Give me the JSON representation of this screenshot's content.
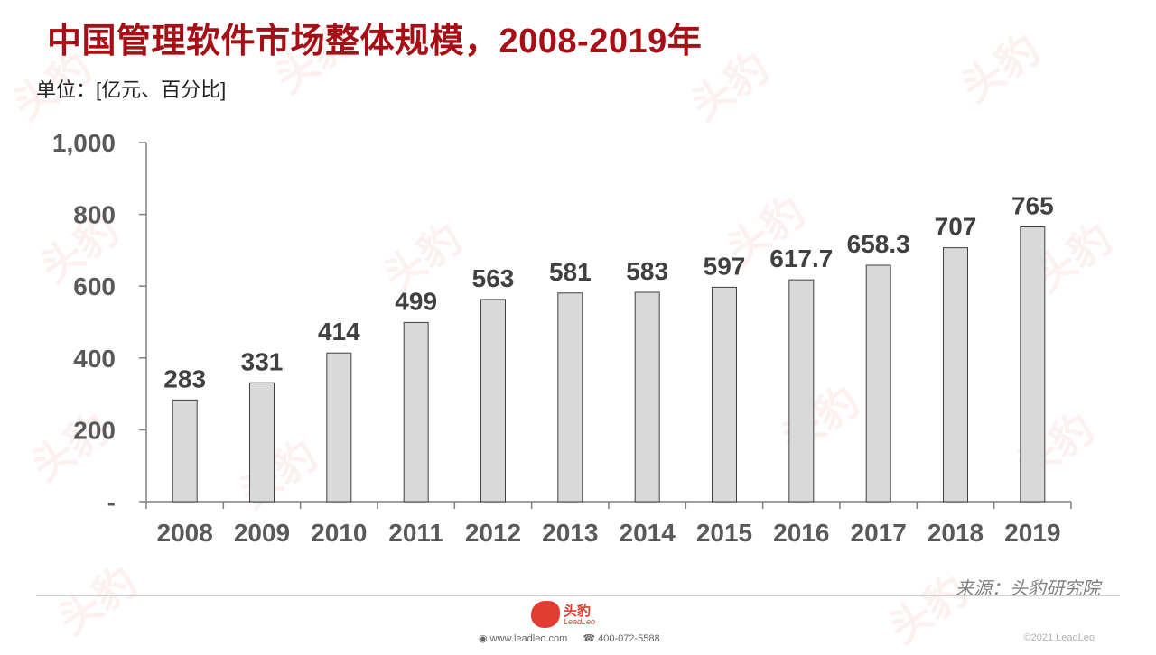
{
  "header": {
    "title": "中国管理软件市场整体规模，2008-2019年",
    "unit": "单位：[亿元、百分比]"
  },
  "source": "来源：头豹研究院",
  "footer": {
    "logo_text": "头豹",
    "logo_sub": "LeadLeo",
    "website": "www.leadleo.com",
    "phone": "400-072-5588",
    "copyright": "©2021 LeadLeo"
  },
  "watermark_text": "头豹",
  "colors": {
    "title": "#a50f15",
    "bar_fill": "#d9d9d9",
    "bar_stroke": "#404040",
    "brand": "#e03c31"
  },
  "chart_data": {
    "type": "bar",
    "categories": [
      "2008",
      "2009",
      "2010",
      "2011",
      "2012",
      "2013",
      "2014",
      "2015",
      "2016",
      "2017",
      "2018",
      "2019"
    ],
    "values": [
      283,
      331,
      414,
      499,
      563,
      581,
      583,
      597,
      617.7,
      658.3,
      707,
      765
    ],
    "value_labels": [
      "283",
      "331",
      "414",
      "499",
      "563",
      "581",
      "583",
      "597",
      "617.7",
      "658.3",
      "707",
      "765"
    ],
    "y_ticks": [
      0,
      200,
      400,
      600,
      800,
      1000
    ],
    "y_tick_labels": [
      "-",
      "200",
      "400",
      "600",
      "800",
      "1,000"
    ],
    "ylim": [
      0,
      1000
    ],
    "xlabel": "",
    "ylabel": "",
    "grid": false,
    "legend": false
  }
}
